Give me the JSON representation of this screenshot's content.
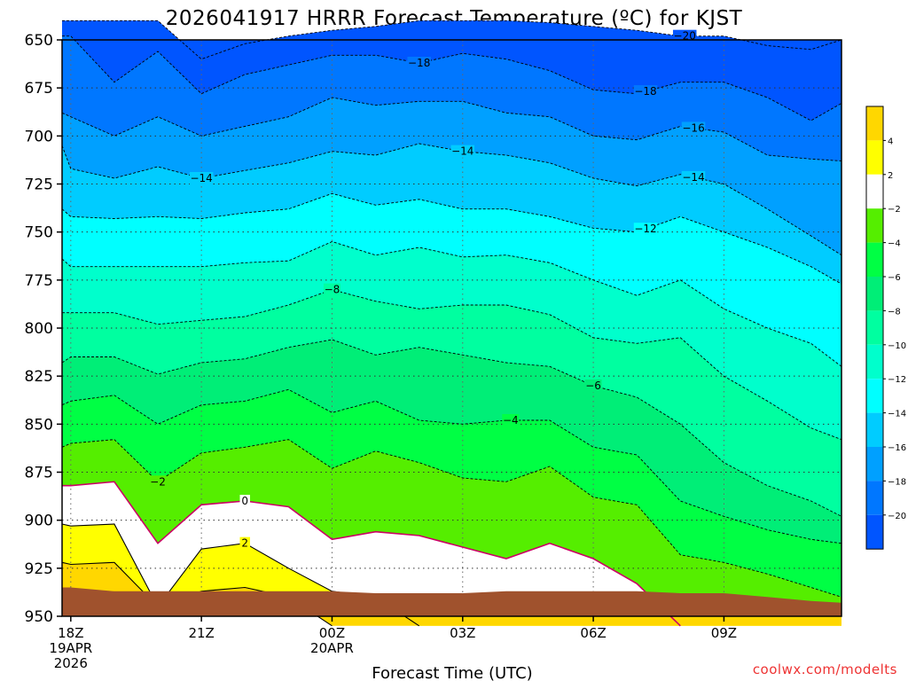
{
  "chart_data": {
    "type": "contour",
    "title": "2026041917 HRRR Forecast Temperature (ºC) for KJST",
    "xlabel": "Forecast Time (UTC)",
    "ylabel": "",
    "credit": "coolwx.com/modelts",
    "y_axis": {
      "unit": "hPa",
      "inverted": true,
      "ticks": [
        "650",
        "675",
        "700",
        "725",
        "750",
        "775",
        "800",
        "825",
        "850",
        "875",
        "900",
        "925",
        "950"
      ],
      "ylim": [
        650,
        950
      ]
    },
    "x_axis": {
      "range_hours": [
        -0.2,
        17.7
      ],
      "ticks": [
        {
          "hour": 0,
          "lines": [
            "18Z",
            "19APR",
            "2026"
          ]
        },
        {
          "hour": 3,
          "lines": [
            "21Z"
          ]
        },
        {
          "hour": 6,
          "lines": [
            "00Z",
            "20APR"
          ]
        },
        {
          "hour": 9,
          "lines": [
            "03Z"
          ]
        },
        {
          "hour": 12,
          "lines": [
            "06Z"
          ]
        },
        {
          "hour": 15,
          "lines": [
            "09Z"
          ]
        }
      ]
    },
    "grid": true,
    "colorbar": {
      "levels": [
        4,
        2,
        -2,
        -4,
        -6,
        -8,
        -10,
        -12,
        -14,
        -16,
        -18,
        -20
      ],
      "bands": [
        {
          "color": "#ffd700"
        },
        {
          "color": "#ffff00"
        },
        {
          "color": "#ffffff"
        },
        {
          "color": "#55ee00"
        },
        {
          "color": "#00ff44"
        },
        {
          "color": "#00ee77"
        },
        {
          "color": "#00ffa0"
        },
        {
          "color": "#00ffcc"
        },
        {
          "color": "#00ffff"
        },
        {
          "color": "#00ccff"
        },
        {
          "color": "#00a0ff"
        },
        {
          "color": "#0077ff"
        },
        {
          "color": "#0055ff"
        }
      ]
    },
    "hours": [
      -0.2,
      0,
      1,
      2,
      3,
      4,
      5,
      6,
      7,
      8,
      9,
      10,
      11,
      12,
      13,
      14,
      15,
      16,
      17,
      17.7
    ],
    "isotherms": [
      {
        "temp": -20,
        "fill": "#0055ff",
        "p": [
          640,
          640,
          640,
          640,
          660,
          652,
          648,
          645,
          643,
          640,
          640,
          640,
          641,
          643,
          645,
          648,
          648,
          653,
          655,
          650
        ],
        "labels": [
          {
            "hour": 14.1,
            "value": "-20"
          }
        ]
      },
      {
        "temp": -18,
        "fill": "#0077ff",
        "p": [
          648,
          648,
          672,
          656,
          678,
          668,
          663,
          658,
          658,
          662,
          657,
          660,
          666,
          676,
          678,
          672,
          672,
          680,
          692,
          683
        ],
        "labels": [
          {
            "hour": 8.0,
            "value": "-18"
          },
          {
            "hour": 13.2,
            "value": "-18"
          }
        ]
      },
      {
        "temp": -16,
        "fill": "#00a0ff",
        "p": [
          688,
          690,
          700,
          690,
          700,
          695,
          690,
          680,
          684,
          682,
          682,
          688,
          690,
          700,
          702,
          695,
          698,
          710,
          712,
          713
        ],
        "labels": [
          {
            "hour": 14.3,
            "value": "-16"
          }
        ]
      },
      {
        "temp": -14,
        "fill": "#00ccff",
        "p": [
          705,
          717,
          722,
          716,
          722,
          718,
          714,
          708,
          710,
          704,
          708,
          710,
          714,
          722,
          726,
          720,
          725,
          738,
          752,
          762
        ],
        "labels": [
          {
            "hour": 3.0,
            "value": "-14"
          },
          {
            "hour": 9.0,
            "value": "-14"
          },
          {
            "hour": 14.3,
            "value": "-14"
          }
        ]
      },
      {
        "temp": -12,
        "fill": "#00ffff",
        "p": [
          738,
          742,
          743,
          742,
          743,
          740,
          738,
          730,
          736,
          733,
          738,
          738,
          742,
          748,
          750,
          742,
          750,
          758,
          768,
          777
        ],
        "labels": [
          {
            "hour": 13.2,
            "value": "-12"
          }
        ]
      },
      {
        "temp": -10,
        "fill": "#00ffcc",
        "p": [
          764,
          768,
          768,
          768,
          768,
          766,
          765,
          755,
          762,
          758,
          763,
          762,
          766,
          775,
          783,
          775,
          790,
          800,
          808,
          820
        ],
        "labels": []
      },
      {
        "temp": -8,
        "fill": "#00ffa0",
        "p": [
          792,
          792,
          792,
          798,
          796,
          794,
          788,
          780,
          786,
          790,
          788,
          788,
          793,
          805,
          808,
          805,
          825,
          838,
          852,
          858
        ],
        "labels": [
          {
            "hour": 6.0,
            "value": "-8"
          }
        ]
      },
      {
        "temp": -6,
        "fill": "#00ee77",
        "p": [
          818,
          815,
          815,
          824,
          818,
          816,
          810,
          806,
          814,
          810,
          814,
          818,
          820,
          830,
          836,
          850,
          870,
          882,
          890,
          898
        ],
        "labels": [
          {
            "hour": 12.0,
            "value": "-6"
          }
        ]
      },
      {
        "temp": -4,
        "fill": "#00ff44",
        "p": [
          840,
          838,
          835,
          850,
          840,
          838,
          832,
          844,
          838,
          848,
          850,
          848,
          848,
          862,
          866,
          890,
          898,
          905,
          910,
          912
        ],
        "labels": [
          {
            "hour": 10.1,
            "value": "-4"
          }
        ]
      },
      {
        "temp": -2,
        "fill": "#55ee00",
        "p": [
          862,
          860,
          858,
          880,
          865,
          862,
          858,
          873,
          864,
          870,
          878,
          880,
          872,
          888,
          892,
          918,
          922,
          928,
          935,
          940
        ],
        "labels": [
          {
            "hour": 2.0,
            "value": "-2"
          }
        ]
      },
      {
        "temp": 0,
        "fill": "#ffffff",
        "p": [
          882,
          882,
          880,
          912,
          892,
          890,
          893,
          910,
          906,
          908,
          914,
          920,
          912,
          920,
          933,
          955,
          955,
          955,
          955,
          955
        ],
        "labels": [
          {
            "hour": 4.0,
            "value": "0"
          }
        ]
      },
      {
        "temp": 2,
        "fill": "#ffff00",
        "p": [
          902,
          903,
          902,
          945,
          915,
          912,
          925,
          937,
          940,
          955,
          955,
          955,
          955,
          955,
          955,
          955,
          955,
          955,
          955,
          955
        ],
        "labels": [
          {
            "hour": 4.0,
            "value": "2"
          }
        ]
      },
      {
        "temp": 4,
        "fill": "#ffd700",
        "p": [
          922,
          923,
          922,
          945,
          937,
          935,
          940,
          955,
          955,
          955,
          955,
          955,
          955,
          955,
          955,
          955,
          955,
          955,
          955,
          955
        ],
        "labels": []
      }
    ],
    "terrain": {
      "color": "#a0522d",
      "p": [
        935,
        935,
        937,
        937,
        937,
        937,
        937,
        937,
        938,
        938,
        938,
        937,
        937,
        937,
        937,
        938,
        938,
        940,
        942,
        943
      ]
    }
  }
}
